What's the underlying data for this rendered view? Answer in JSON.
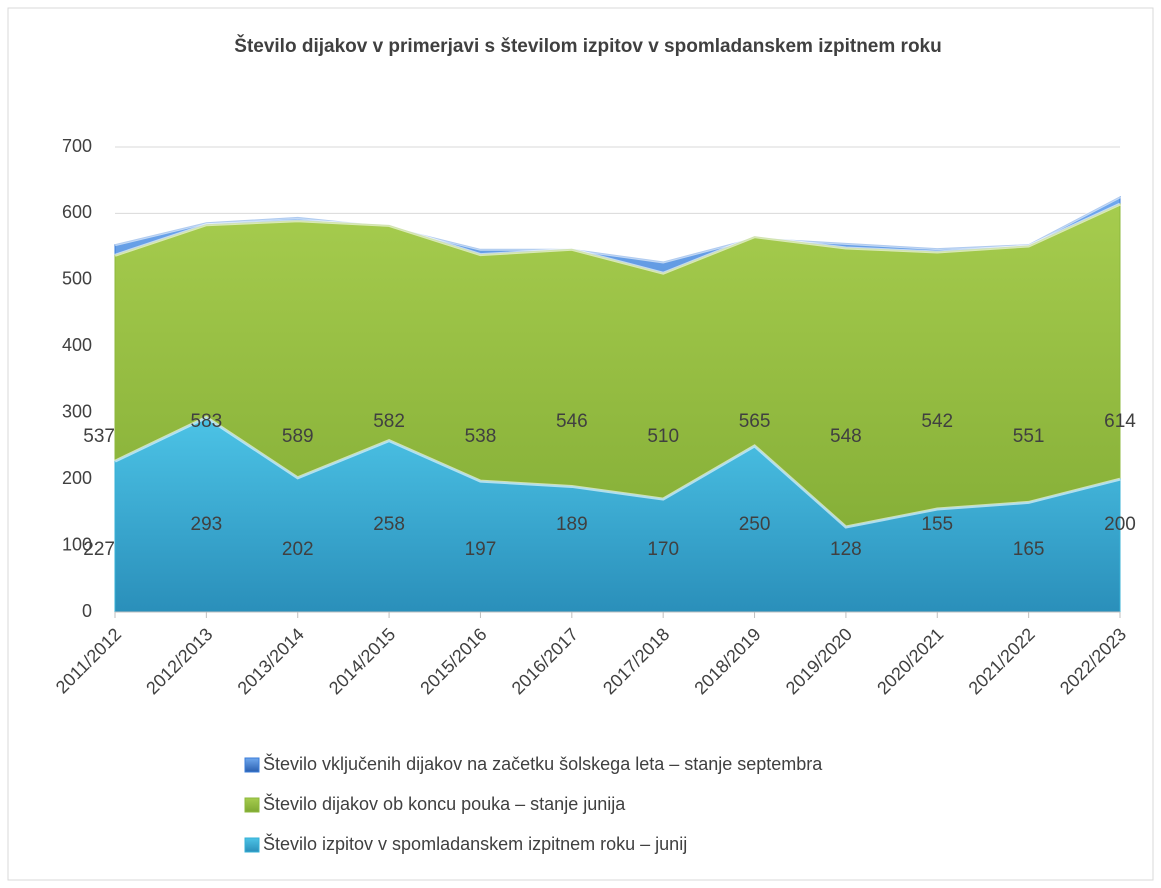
{
  "chart_data": {
    "type": "area",
    "title": "Število dijakov v primerjavi s številom izpitov v spomladanskem  izpitnem roku",
    "categories": [
      "2011/2012",
      "2012/2013",
      "2013/2014",
      "2014/2015",
      "2015/2016",
      "2016/2017",
      "2017/2018",
      "2018/2019",
      "2019/2020",
      "2020/2021",
      "2021/2022",
      "2022/2023"
    ],
    "series": [
      {
        "name": "Število vključenih dijakov na začetku šolskega leta – stanje septembra",
        "color": "#3b7dd8",
        "values": [
          553,
          586,
          594,
          580,
          546,
          546,
          527,
          563,
          555,
          547,
          553,
          625
        ]
      },
      {
        "name": "Število dijakov ob koncu pouka – stanje junija",
        "color": "#8db83c",
        "values": [
          537,
          583,
          589,
          582,
          538,
          546,
          510,
          565,
          548,
          542,
          551,
          614
        ],
        "data_labels": true
      },
      {
        "name": "Število izpitov v spomladanskem izpitnem roku – junij",
        "color": "#36b0d6",
        "values": [
          227,
          293,
          202,
          258,
          197,
          189,
          170,
          250,
          128,
          155,
          165,
          200
        ],
        "data_labels": true
      }
    ],
    "ylim": [
      0,
      700
    ],
    "yticks": [
      0,
      100,
      200,
      300,
      400,
      500,
      600,
      700
    ],
    "grid": true,
    "legend": "bottom"
  }
}
